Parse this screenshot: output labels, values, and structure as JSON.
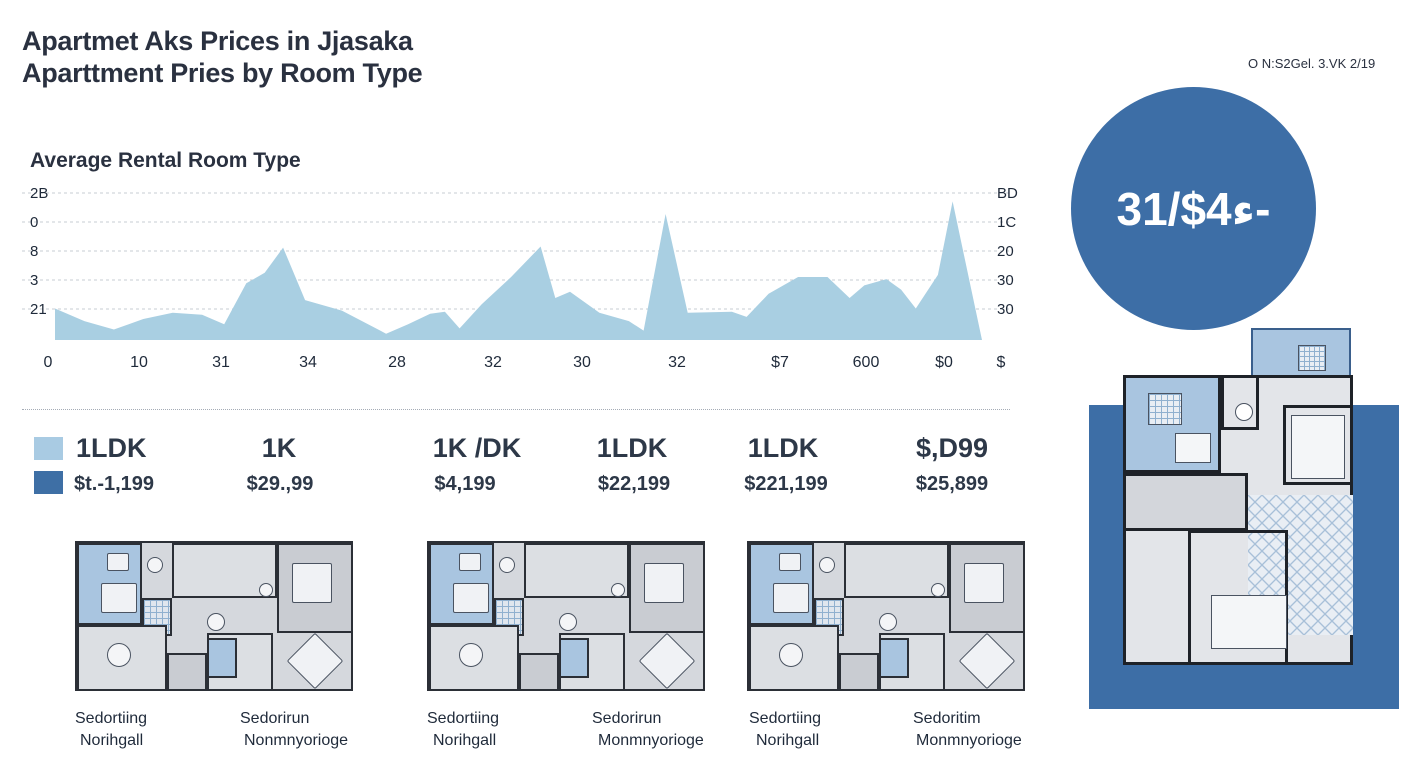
{
  "header": {
    "title_line1": "Apartmet Aks Prices in Jjasaka",
    "title_line2": "Aparttment Pries by Room Type",
    "date_note": "O N:S2Gel. 3.VK 2/19"
  },
  "highlight": {
    "value": "31/$4ء-"
  },
  "chart_data": {
    "type": "area",
    "title": "Average Rental Room Type",
    "left_ticks": [
      "2B",
      "0",
      "8",
      "3",
      "21"
    ],
    "right_ticks": [
      "BD",
      "1C",
      "20",
      "30",
      "30"
    ],
    "x_ticks": [
      "0",
      "10",
      "31",
      "34",
      "28",
      "32",
      "30",
      "32",
      "$7",
      "600",
      "$0",
      "$"
    ],
    "series": [
      {
        "color": "#a9cfe2",
        "values": [
          [
            0,
            1.5
          ],
          [
            4,
            0.9
          ],
          [
            8,
            0.5
          ],
          [
            12,
            1.0
          ],
          [
            16,
            1.3
          ],
          [
            20,
            1.2
          ],
          [
            23,
            0.75
          ],
          [
            26,
            2.7
          ],
          [
            28.5,
            3.2
          ],
          [
            31,
            4.4
          ],
          [
            34,
            1.9
          ],
          [
            39,
            1.4
          ],
          [
            45,
            0.3
          ],
          [
            48,
            0.75
          ],
          [
            51,
            1.25
          ],
          [
            53,
            1.35
          ],
          [
            55,
            0.55
          ],
          [
            58,
            1.7
          ],
          [
            62,
            3.0
          ],
          [
            66,
            4.45
          ],
          [
            68,
            2.0
          ],
          [
            70,
            2.3
          ],
          [
            74,
            1.3
          ],
          [
            78,
            0.9
          ],
          [
            80,
            0.45
          ],
          [
            83,
            6.0
          ],
          [
            86,
            1.3
          ],
          [
            92,
            1.35
          ],
          [
            94,
            1.1
          ],
          [
            97,
            2.2
          ],
          [
            101,
            3.0
          ],
          [
            105,
            3.0
          ],
          [
            108,
            2.0
          ],
          [
            110,
            2.6
          ],
          [
            113,
            2.9
          ],
          [
            115,
            2.4
          ],
          [
            117,
            1.5
          ],
          [
            120,
            3.1
          ],
          [
            122,
            6.6
          ],
          [
            126,
            0.0
          ]
        ]
      }
    ],
    "grid": true
  },
  "legend": {
    "room": "1LDK",
    "price": "$t.-1,199",
    "color_light": "#a9cbe3",
    "color_dark": "#3e6fa5"
  },
  "columns": [
    {
      "room": "1K",
      "price": "$29.,99"
    },
    {
      "room": "1K /DK",
      "price": "$4,199"
    },
    {
      "room": "1LDK",
      "price": "$22,199"
    },
    {
      "room": "1LDK",
      "price": "$221,199"
    },
    {
      "room": "$,D99",
      "price": "$25,899"
    }
  ],
  "captions": [
    {
      "line1": "Sedortiing",
      "line2": "Norihgall"
    },
    {
      "line1": "Sedorirun",
      "line2": "Nonmnyorioge"
    },
    {
      "line1": "Sedortiing",
      "line2": "Norihgall"
    },
    {
      "line1": "Sedorirun",
      "line2": "Monmnyorioge"
    },
    {
      "line1": "Sedortiing",
      "line2": "Norihgall"
    },
    {
      "line1": "Sedoritim",
      "line2": "Monmnyorioge"
    }
  ]
}
